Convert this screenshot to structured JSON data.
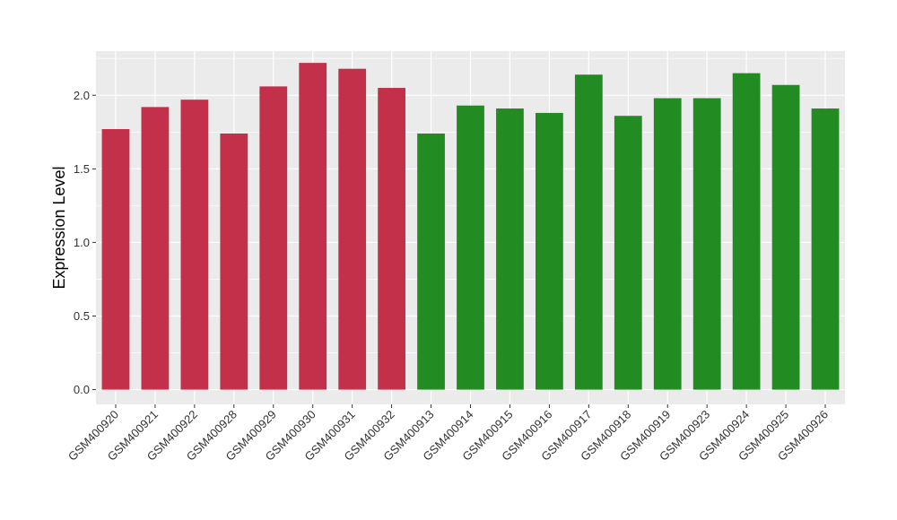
{
  "chart_data": {
    "type": "bar",
    "title": "",
    "xlabel": "",
    "ylabel": "Expression Level",
    "ylim": [
      -0.1,
      2.3
    ],
    "yticks": [
      0.0,
      0.5,
      1.0,
      1.5,
      2.0
    ],
    "ytick_labels": [
      "0.0",
      "0.5",
      "1.0",
      "1.5",
      "2.0"
    ],
    "grid": true,
    "legend": "none",
    "categories": [
      "GSM400920",
      "GSM400921",
      "GSM400922",
      "GSM400928",
      "GSM400929",
      "GSM400930",
      "GSM400931",
      "GSM400932",
      "GSM400913",
      "GSM400914",
      "GSM400915",
      "GSM400916",
      "GSM400917",
      "GSM400918",
      "GSM400919",
      "GSM400923",
      "GSM400924",
      "GSM400925",
      "GSM400926"
    ],
    "values": [
      1.77,
      1.92,
      1.97,
      1.74,
      2.06,
      2.22,
      2.18,
      2.05,
      1.74,
      1.93,
      1.91,
      1.88,
      2.14,
      1.86,
      1.98,
      1.98,
      2.15,
      2.07,
      1.91
    ],
    "groups": [
      "red",
      "red",
      "red",
      "red",
      "red",
      "red",
      "red",
      "red",
      "green",
      "green",
      "green",
      "green",
      "green",
      "green",
      "green",
      "green",
      "green",
      "green",
      "green"
    ],
    "colors": {
      "red": "#C3304A",
      "green": "#228B22",
      "panel": "#EBEBEB",
      "grid": "#FFFFFF"
    }
  }
}
